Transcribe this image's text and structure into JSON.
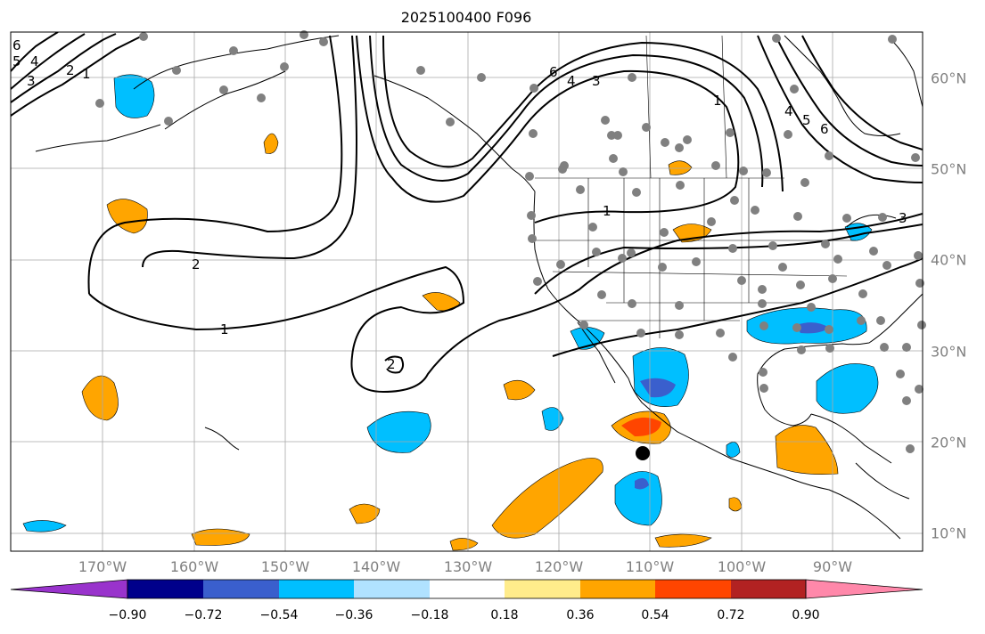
{
  "title": "2025100400 F096",
  "longitude_labels": [
    "170°W",
    "160°W",
    "150°W",
    "140°W",
    "130°W",
    "120°W",
    "110°W",
    "100°W",
    "90°W"
  ],
  "latitude_labels": [
    "60°N",
    "50°N",
    "40°N",
    "30°N",
    "20°N",
    "10°N"
  ],
  "contour_labels": [
    "6",
    "5",
    "4",
    "3",
    "2",
    "1",
    "2",
    "1",
    "1",
    "6",
    "4",
    "3",
    "4",
    "5",
    "6",
    "1",
    "3",
    "2"
  ],
  "colorbar": {
    "ticks": [
      "−0.90",
      "−0.72",
      "−0.54",
      "−0.36",
      "−0.18",
      "0.18",
      "0.36",
      "0.54",
      "0.72",
      "0.90"
    ],
    "colors": [
      "#9933cc",
      "#00008b",
      "#3a5fcd",
      "#00bfff",
      "#b0e2ff",
      "#ffffff",
      "#ffec8b",
      "#ffa500",
      "#ff4500",
      "#b22222",
      "#ff88aa"
    ]
  },
  "colors": {
    "land_lines": "#000000",
    "grid": "#a9a9a9",
    "stations": "#808080",
    "marker": "#000000",
    "axis_labels": "#808080"
  }
}
